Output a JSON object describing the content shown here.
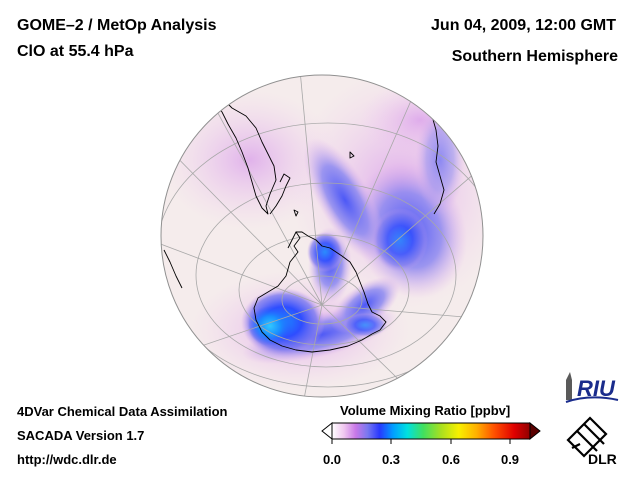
{
  "header": {
    "title": "GOME–2 / MetOp Analysis",
    "subtitle": "ClO at 55.4 hPa",
    "datetime": "Jun 04, 2009, 12:00 GMT",
    "hemisphere": "Southern Hemisphere"
  },
  "footer": {
    "line1": "4DVar Chemical Data Assimilation",
    "line2": "SACADA Version 1.7",
    "line3": "http://wdc.dlr.de"
  },
  "colorbar": {
    "title": "Volume Mixing Ratio [ppbv]",
    "ticks": [
      "0.0",
      "0.3",
      "0.6",
      "0.9"
    ],
    "min": 0.0,
    "max": 0.95,
    "colors": [
      "#ffffff",
      "#f0c8f0",
      "#c878e8",
      "#7878f0",
      "#2838ff",
      "#00a0ff",
      "#00e0e0",
      "#40e060",
      "#a8e020",
      "#f8f000",
      "#ffb000",
      "#ff5000",
      "#e00000",
      "#900000"
    ]
  },
  "logos": {
    "riu": "RIU",
    "dlr": "DLR"
  },
  "colors": {
    "globe_background": "#f5ecec",
    "graticule": "#a8a8a8",
    "coastline": "#000000",
    "clo_high": "#2850ff",
    "clo_mid": "#9088f0",
    "clo_low": "#e8b8ec"
  }
}
